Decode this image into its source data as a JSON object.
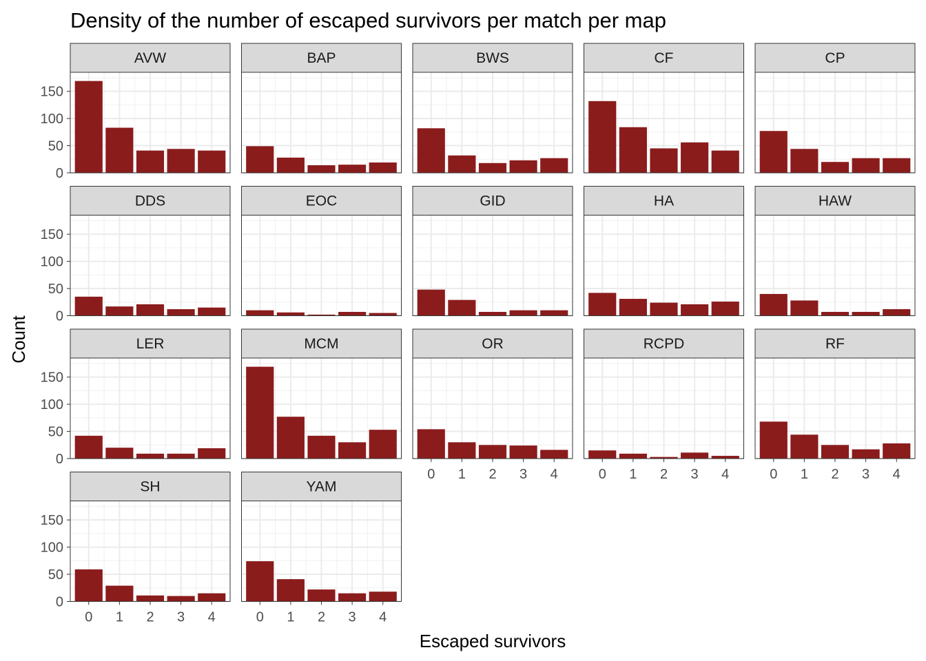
{
  "chart_data": {
    "type": "bar",
    "title": "Density of the number of escaped survivors per match per map",
    "xlabel": "Escaped survivors",
    "ylabel": "Count",
    "categories": [
      "0",
      "1",
      "2",
      "3",
      "4"
    ],
    "ylim": [
      0,
      185
    ],
    "yticks": [
      0,
      50,
      100,
      150
    ],
    "grid": true,
    "bar_color": "#8B1C1C",
    "facets": [
      {
        "name": "AVW",
        "values": [
          169,
          83,
          41,
          44,
          41
        ]
      },
      {
        "name": "BAP",
        "values": [
          49,
          28,
          14,
          15,
          19
        ]
      },
      {
        "name": "BWS",
        "values": [
          82,
          32,
          18,
          23,
          27
        ]
      },
      {
        "name": "CF",
        "values": [
          132,
          84,
          45,
          56,
          41
        ]
      },
      {
        "name": "CP",
        "values": [
          77,
          44,
          20,
          27,
          27
        ]
      },
      {
        "name": "DDS",
        "values": [
          35,
          17,
          21,
          12,
          15
        ]
      },
      {
        "name": "EOC",
        "values": [
          10,
          6,
          2,
          7,
          5
        ]
      },
      {
        "name": "GID",
        "values": [
          48,
          29,
          7,
          10,
          10
        ]
      },
      {
        "name": "HA",
        "values": [
          42,
          31,
          24,
          21,
          26
        ]
      },
      {
        "name": "HAW",
        "values": [
          40,
          28,
          7,
          7,
          12
        ]
      },
      {
        "name": "LER",
        "values": [
          42,
          20,
          9,
          9,
          19
        ]
      },
      {
        "name": "MCM",
        "values": [
          169,
          77,
          42,
          30,
          53
        ]
      },
      {
        "name": "OR",
        "values": [
          54,
          30,
          25,
          24,
          16
        ]
      },
      {
        "name": "RCPD",
        "values": [
          15,
          9,
          3,
          11,
          5
        ]
      },
      {
        "name": "RF",
        "values": [
          68,
          44,
          25,
          17,
          28
        ]
      },
      {
        "name": "SH",
        "values": [
          59,
          29,
          11,
          10,
          15
        ]
      },
      {
        "name": "YAM",
        "values": [
          74,
          41,
          22,
          15,
          18
        ]
      }
    ]
  }
}
